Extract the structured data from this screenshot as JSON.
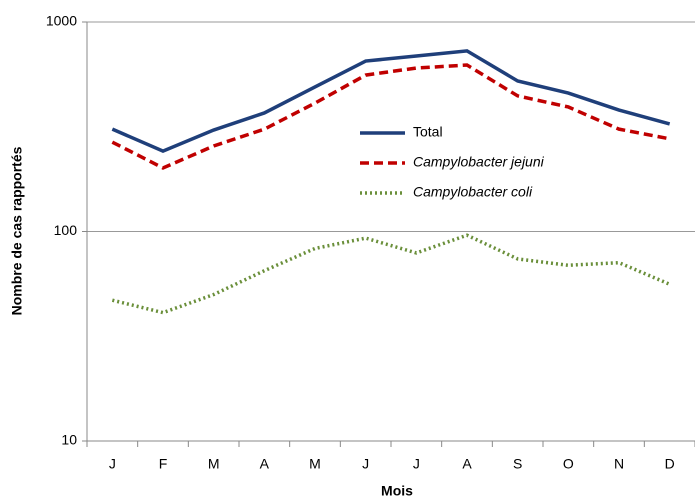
{
  "chart_data": {
    "type": "line",
    "x_label": "Mois",
    "y_label": "Nombre de cas rapportés",
    "categories": [
      "J",
      "F",
      "M",
      "A",
      "M",
      "J",
      "J",
      "A",
      "S",
      "O",
      "N",
      "D"
    ],
    "series": [
      {
        "name": "Total",
        "color": "#1f3f7a",
        "dash": "solid",
        "italic": false,
        "values": [
          308,
          242,
          305,
          368,
          490,
          651,
          688,
          728,
          523,
          458,
          380,
          326
        ]
      },
      {
        "name": "Campylobacter jejuni",
        "color": "#c00000",
        "dash": "dashed",
        "italic": true,
        "values": [
          267,
          201,
          256,
          308,
          410,
          558,
          603,
          623,
          444,
          393,
          308,
          277
        ]
      },
      {
        "name": "Campylobacter coli",
        "color": "#6a8f3a",
        "dash": "dotted",
        "italic": true,
        "values": [
          47,
          41,
          50,
          65,
          83,
          93,
          79,
          96,
          74,
          69,
          71,
          56
        ]
      }
    ],
    "ylim": [
      10,
      1000
    ],
    "yticks": [
      10,
      100,
      1000
    ],
    "log_y": true,
    "grid": true
  }
}
